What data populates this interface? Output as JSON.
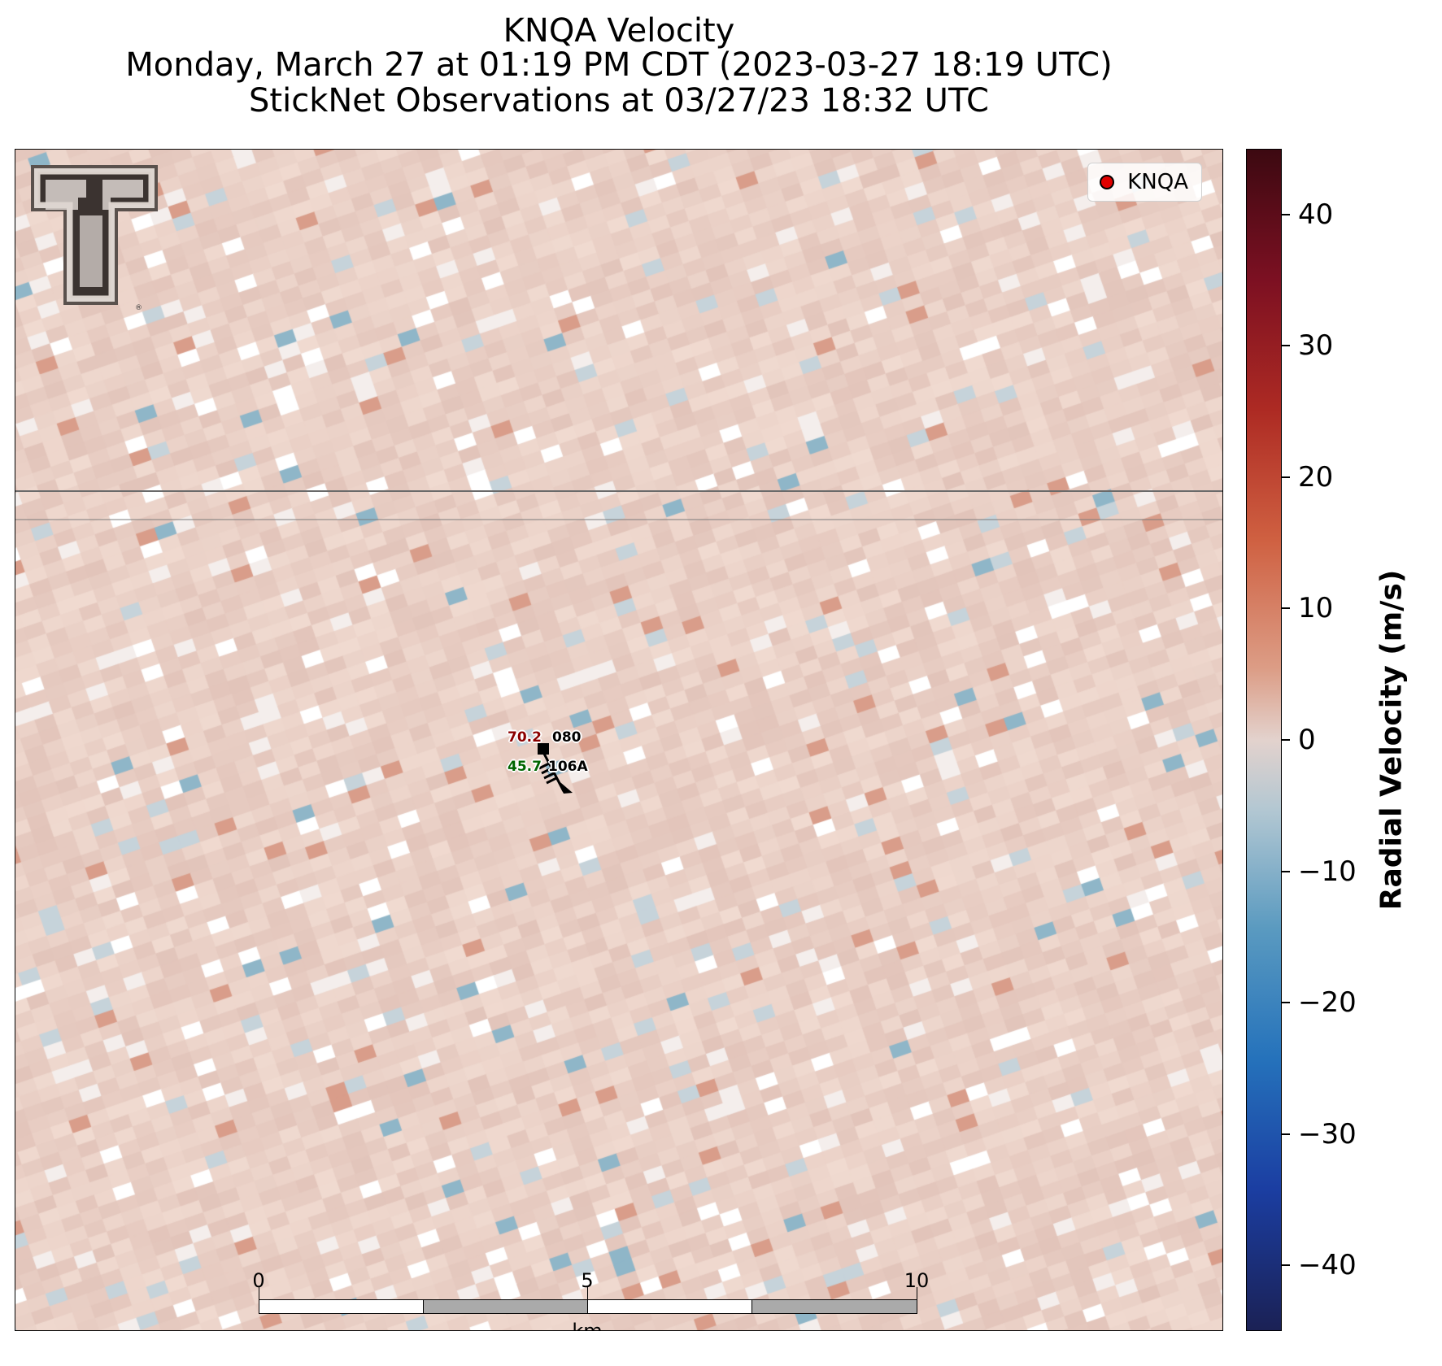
{
  "header": {
    "title": "KNQA Velocity",
    "subtitle": "Monday, March 27 at 01:19 PM CDT (2023-03-27 18:19 UTC)",
    "subtitle2": "StickNet Observations at 03/27/23 18:32 UTC"
  },
  "legend": {
    "label": "KNQA",
    "marker_color": "#e00000"
  },
  "station": {
    "temperature": "70.2",
    "temperature_color": "#8b0000",
    "dewpoint": "45.7",
    "dewpoint_color": "#006400",
    "pressure": "080",
    "station_id": "106A"
  },
  "scalebar": {
    "labels": [
      "0",
      "5",
      "10"
    ],
    "unit": "km"
  },
  "colorbar": {
    "label": "Radial Velocity (m/s)",
    "ticks": [
      "40",
      "30",
      "20",
      "10",
      "0",
      "−10",
      "−20",
      "−30",
      "−40"
    ],
    "tick_values": [
      40,
      30,
      20,
      10,
      0,
      -10,
      -20,
      -30,
      -40
    ],
    "range": [
      -45,
      45
    ]
  }
}
